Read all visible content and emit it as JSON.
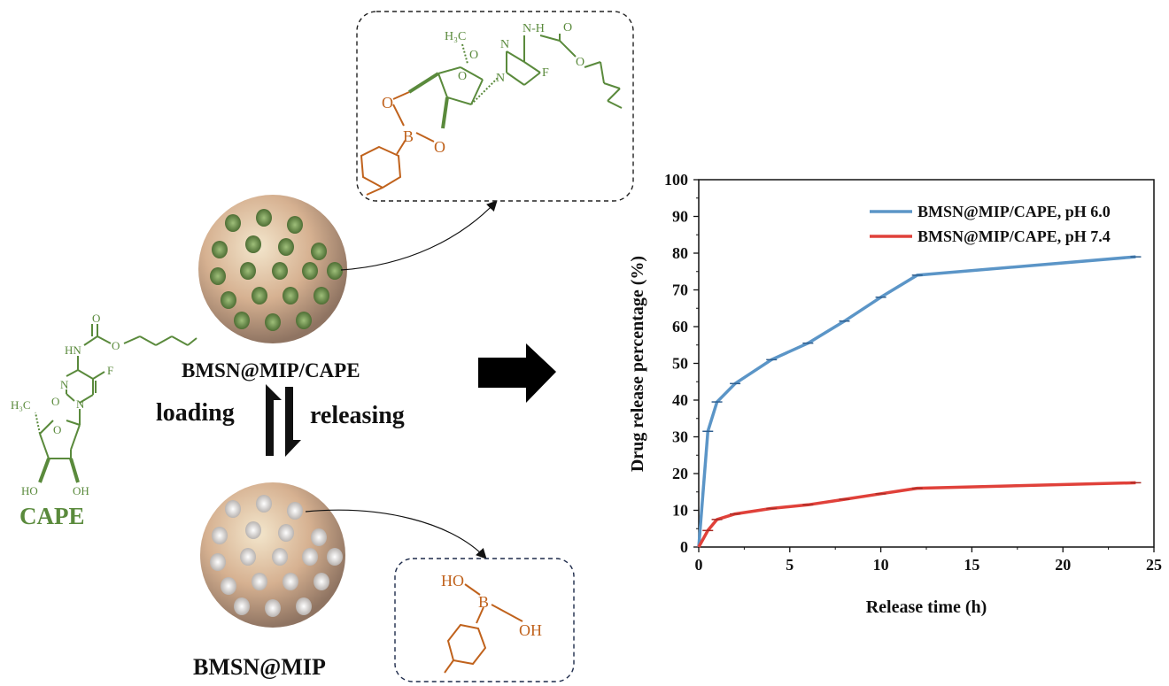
{
  "schematic": {
    "cape_label": "CAPE",
    "loaded_label": "BMSN@MIP/CAPE",
    "empty_label": "BMSN@MIP",
    "loading_label": "loading",
    "releasing_label": "releasing",
    "cape_atoms": {
      "o_top": "O",
      "hn": "HN",
      "o_ester": "O",
      "n1": "N",
      "o2": "O",
      "f": "F",
      "n3": "N",
      "h3c": "H₃C",
      "o_ring": "O",
      "ho": "HO",
      "oh": "OH"
    },
    "loaded_inset_atoms": {
      "h3c": "H₃C",
      "n": "N",
      "o_carbonyl": "O",
      "hn": "N-H",
      "o_top": "O",
      "o_ester": "O",
      "f": "F",
      "n1": "N",
      "o_ring": "O",
      "o_b1": "O",
      "b": "B",
      "o_b2": "O"
    },
    "empty_inset_atoms": {
      "ho": "HO",
      "b": "B",
      "oh": "OH"
    }
  },
  "colors": {
    "green": "#5a8a3c",
    "orange": "#c0621c",
    "blue_series": "#5b95c7",
    "red_series": "#e0413a"
  },
  "chart_data": {
    "type": "line",
    "xlabel": "Release time (h)",
    "ylabel": "Drug release percentage (%)",
    "xlim": [
      0,
      25
    ],
    "ylim": [
      0,
      100
    ],
    "xticks": [
      0,
      5,
      10,
      15,
      20,
      25
    ],
    "yticks": [
      0,
      10,
      20,
      30,
      40,
      50,
      60,
      70,
      80,
      90,
      100
    ],
    "grid": false,
    "legend_position": "top-right",
    "series": [
      {
        "name": "BMSN@MIP/CAPE, pH 6.0",
        "color": "#5b95c7",
        "x": [
          0,
          0.5,
          1,
          2,
          4,
          6,
          8,
          10,
          12,
          24
        ],
        "y": [
          0,
          31.5,
          39.5,
          44.5,
          51,
          55.5,
          61.5,
          68,
          74,
          79
        ]
      },
      {
        "name": "BMSN@MIP/CAPE, pH 7.4",
        "color": "#e0413a",
        "x": [
          0,
          0.5,
          1,
          2,
          4,
          6,
          8,
          10,
          12,
          24
        ],
        "y": [
          0,
          4.5,
          7.5,
          9,
          10.5,
          11.5,
          13,
          14.5,
          16,
          17.5
        ]
      }
    ]
  }
}
